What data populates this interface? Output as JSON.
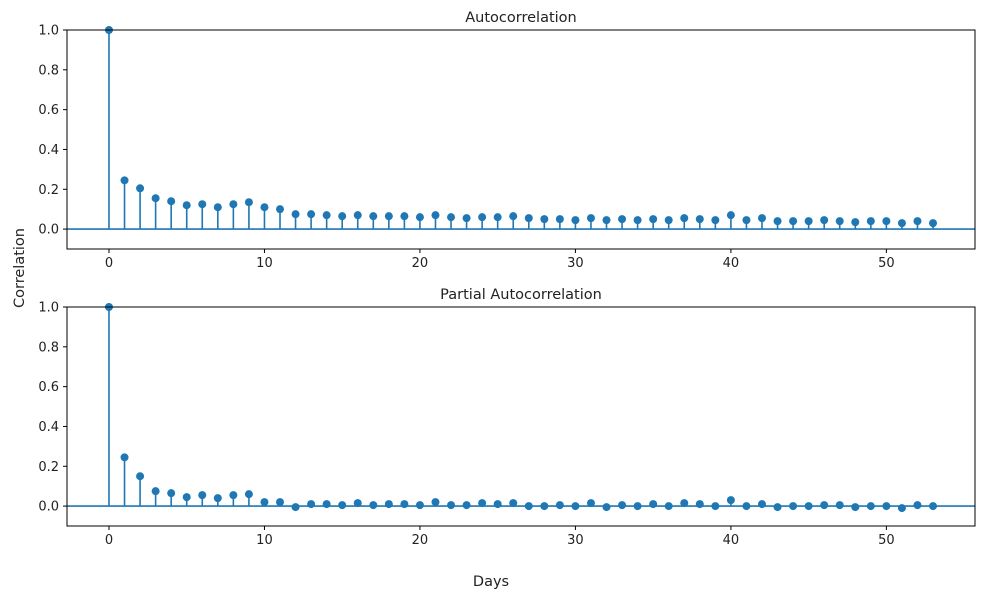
{
  "figure": {
    "ylabel": "Correlation",
    "xlabel": "Days"
  },
  "chart_data": [
    {
      "type": "stem",
      "title": "Autocorrelation",
      "color": "#1f77b4",
      "xlim": [
        -2.7,
        55.7
      ],
      "ylim": [
        -0.1,
        1.0
      ],
      "xticks": [
        0,
        10,
        20,
        30,
        40,
        50
      ],
      "yticks": [
        0.0,
        0.2,
        0.4,
        0.6,
        0.8,
        1.0
      ],
      "ytick_labels": [
        "0.0",
        "0.2",
        "0.4",
        "0.6",
        "0.8",
        "1.0"
      ],
      "grid": false,
      "x": [
        0,
        1,
        2,
        3,
        4,
        5,
        6,
        7,
        8,
        9,
        10,
        11,
        12,
        13,
        14,
        15,
        16,
        17,
        18,
        19,
        20,
        21,
        22,
        23,
        24,
        25,
        26,
        27,
        28,
        29,
        30,
        31,
        32,
        33,
        34,
        35,
        36,
        37,
        38,
        39,
        40,
        41,
        42,
        43,
        44,
        45,
        46,
        47,
        48,
        49,
        50,
        51,
        52,
        53
      ],
      "values": [
        1.0,
        0.245,
        0.205,
        0.155,
        0.14,
        0.12,
        0.125,
        0.11,
        0.125,
        0.135,
        0.11,
        0.1,
        0.075,
        0.075,
        0.07,
        0.065,
        0.07,
        0.065,
        0.065,
        0.065,
        0.06,
        0.07,
        0.06,
        0.055,
        0.06,
        0.06,
        0.065,
        0.055,
        0.05,
        0.05,
        0.045,
        0.055,
        0.045,
        0.05,
        0.045,
        0.05,
        0.045,
        0.055,
        0.05,
        0.045,
        0.07,
        0.045,
        0.055,
        0.04,
        0.04,
        0.04,
        0.045,
        0.04,
        0.035,
        0.04,
        0.04,
        0.03,
        0.04,
        0.03
      ]
    },
    {
      "type": "stem",
      "title": "Partial Autocorrelation",
      "color": "#1f77b4",
      "xlim": [
        -2.7,
        55.7
      ],
      "ylim": [
        -0.1,
        1.0
      ],
      "xticks": [
        0,
        10,
        20,
        30,
        40,
        50
      ],
      "yticks": [
        0.0,
        0.2,
        0.4,
        0.6,
        0.8,
        1.0
      ],
      "ytick_labels": [
        "0.0",
        "0.2",
        "0.4",
        "0.6",
        "0.8",
        "1.0"
      ],
      "grid": false,
      "x": [
        0,
        1,
        2,
        3,
        4,
        5,
        6,
        7,
        8,
        9,
        10,
        11,
        12,
        13,
        14,
        15,
        16,
        17,
        18,
        19,
        20,
        21,
        22,
        23,
        24,
        25,
        26,
        27,
        28,
        29,
        30,
        31,
        32,
        33,
        34,
        35,
        36,
        37,
        38,
        39,
        40,
        41,
        42,
        43,
        44,
        45,
        46,
        47,
        48,
        49,
        50,
        51,
        52,
        53
      ],
      "values": [
        1.0,
        0.245,
        0.15,
        0.075,
        0.065,
        0.045,
        0.055,
        0.04,
        0.055,
        0.06,
        0.02,
        0.02,
        -0.005,
        0.01,
        0.01,
        0.005,
        0.015,
        0.005,
        0.01,
        0.01,
        0.005,
        0.02,
        0.005,
        0.005,
        0.015,
        0.01,
        0.015,
        0.0,
        0.0,
        0.005,
        0.0,
        0.015,
        -0.005,
        0.005,
        0.0,
        0.01,
        0.0,
        0.015,
        0.01,
        0.0,
        0.03,
        0.0,
        0.01,
        -0.005,
        0.0,
        0.0,
        0.005,
        0.005,
        -0.005,
        0.0,
        0.0,
        -0.01,
        0.005,
        0.0
      ]
    }
  ]
}
